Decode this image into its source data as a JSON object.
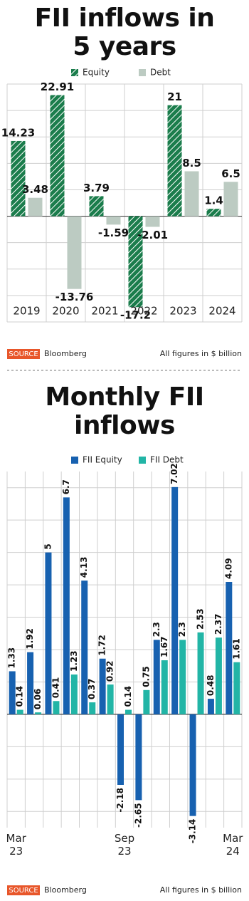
{
  "chart_data": [
    {
      "type": "bar",
      "title": "FII inflows in 5 years",
      "categories": [
        "2019",
        "2020",
        "2021",
        "2022",
        "2023",
        "2024"
      ],
      "series": [
        {
          "name": "Equity",
          "color": "#1b7d4c",
          "hatch": true,
          "values": [
            14.23,
            22.91,
            3.79,
            -17.2,
            21,
            1.4
          ]
        },
        {
          "name": "Debt",
          "color": "#bccbc2",
          "hatch": false,
          "values": [
            3.48,
            -13.76,
            -1.59,
            -2.01,
            8.5,
            6.5
          ]
        }
      ],
      "ylim": [
        -20,
        25
      ],
      "yticks": [
        -20,
        -15,
        -10,
        -5,
        0,
        5,
        10,
        15,
        20,
        25
      ],
      "grid": true,
      "legend": "top",
      "source_label": "SOURCE",
      "source": "Bloomberg",
      "note": "All figures in $ billion"
    },
    {
      "type": "bar",
      "title": "Monthly FII inflows",
      "categories": [
        "Mar 23",
        null,
        null,
        null,
        null,
        null,
        "Sep 23",
        null,
        null,
        null,
        null,
        null,
        "Mar 24"
      ],
      "series": [
        {
          "name": "FII Equity",
          "color": "#1761b0",
          "hatch": false,
          "values": [
            1.33,
            1.92,
            5,
            6.7,
            4.13,
            1.72,
            -2.18,
            -2.65,
            2.3,
            7.02,
            -3.14,
            0.48,
            4.09
          ]
        },
        {
          "name": "FII Debt",
          "color": "#22b5a6",
          "hatch": false,
          "values": [
            0.14,
            0.06,
            0.41,
            1.23,
            0.37,
            0.92,
            0.14,
            0.75,
            1.67,
            2.3,
            2.53,
            2.37,
            1.61
          ]
        }
      ],
      "ylim": [
        -3.5,
        7.5
      ],
      "yticks": [
        -3,
        -2,
        -1,
        0,
        1,
        2,
        3,
        4,
        5,
        6,
        7
      ],
      "grid": true,
      "legend": "top",
      "source_label": "SOURCE",
      "source": "Bloomberg",
      "note": "All figures in $ billion"
    }
  ]
}
